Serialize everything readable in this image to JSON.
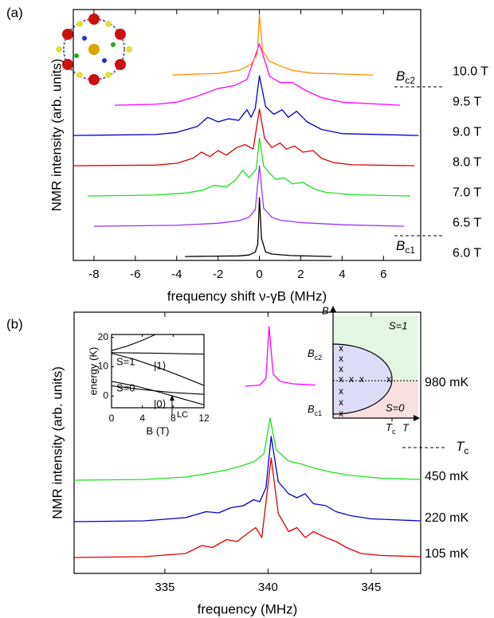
{
  "chart_data": [
    {
      "type": "line",
      "panel_label": "(a)",
      "x_label": "frequency shift ν-γB  (MHz)",
      "y_label": "NMR intensity (arb. units)",
      "xlim": [
        -9,
        7.8
      ],
      "ylim": [
        -0.13,
        8.16
      ],
      "xticks": [
        -8,
        -6,
        -4,
        -2,
        0,
        2,
        4,
        6
      ],
      "series": [
        {
          "name": "6.0 T",
          "color": "#000000",
          "x": [
            -3.6,
            -1,
            -0.5,
            -0.2,
            -0.08,
            0,
            0.1,
            0.3,
            0.6,
            1.5,
            3.5
          ],
          "values": [
            0,
            0.02,
            0.05,
            0.15,
            0.4,
            1.95,
            0.6,
            0.15,
            0.08,
            0.03,
            0
          ]
        },
        {
          "name": "6.5 T",
          "color": "#9933ff",
          "x": [
            -8,
            -4,
            -2,
            -1,
            -0.5,
            -0.2,
            0,
            0.2,
            0.6,
            1,
            2,
            4,
            7
          ],
          "values": [
            1,
            1.03,
            1.1,
            1.18,
            1.3,
            1.55,
            3.0,
            1.6,
            1.3,
            1.2,
            1.12,
            1.05,
            1
          ]
        },
        {
          "name": "7.0 T",
          "color": "#22dd22",
          "x": [
            -8.3,
            -5,
            -3.5,
            -2.7,
            -2.2,
            -1.6,
            -1.2,
            -0.8,
            -0.5,
            -0.15,
            0,
            0.2,
            0.5,
            0.8,
            1.2,
            1.6,
            2.1,
            2.6,
            3.2,
            4.5,
            7.3
          ],
          "values": [
            2,
            2.03,
            2.1,
            2.2,
            2.35,
            2.3,
            2.5,
            2.85,
            2.6,
            2.9,
            3.92,
            3.0,
            2.75,
            2.55,
            2.6,
            2.4,
            2.45,
            2.25,
            2.12,
            2.04,
            2
          ]
        },
        {
          "name": "8.0 T",
          "color": "#e00000",
          "x": [
            -9,
            -5,
            -4,
            -3.2,
            -2.8,
            -2.4,
            -2,
            -1.6,
            -1.1,
            -0.7,
            -0.3,
            0,
            0.25,
            0.6,
            1,
            1.3,
            1.7,
            2.1,
            2.6,
            3,
            3.6,
            4.5,
            7.5
          ],
          "values": [
            3,
            3.02,
            3.08,
            3.25,
            3.45,
            3.3,
            3.5,
            3.35,
            3.6,
            3.7,
            3.55,
            4.87,
            3.9,
            3.6,
            3.75,
            3.55,
            3.65,
            3.45,
            3.5,
            3.25,
            3.1,
            3.03,
            3
          ]
        },
        {
          "name": "9.0 T",
          "color": "#0000cc",
          "x": [
            -9,
            -5,
            -4,
            -3,
            -2.5,
            -2,
            -1.5,
            -1,
            -0.6,
            -0.4,
            -0.2,
            0,
            0.3,
            0.7,
            1.1,
            1.4,
            1.8,
            2.3,
            3,
            4,
            7.7
          ],
          "values": [
            4,
            4.03,
            4.1,
            4.3,
            4.6,
            4.45,
            4.55,
            4.5,
            4.85,
            4.6,
            4.9,
            5.97,
            4.95,
            4.7,
            4.85,
            4.6,
            4.8,
            4.45,
            4.2,
            4.06,
            4
          ]
        },
        {
          "name": "9.5 T",
          "color": "#ff00ff",
          "x": [
            -7,
            -5,
            -4,
            -3,
            -2,
            -1.2,
            -0.6,
            0,
            0.5,
            1,
            1.6,
            2.2,
            3,
            4,
            6.8
          ],
          "values": [
            5,
            5.03,
            5.1,
            5.3,
            5.55,
            5.65,
            5.85,
            7.03,
            5.95,
            5.75,
            5.75,
            5.5,
            5.25,
            5.1,
            5
          ]
        },
        {
          "name": "10.0 T",
          "color": "#ff8c00",
          "x": [
            -4.2,
            -2,
            -1,
            -0.4,
            -0.1,
            0,
            0.15,
            0.5,
            1,
            1.6,
            2.5,
            5.5
          ],
          "values": [
            6,
            6.05,
            6.15,
            6.35,
            6.7,
            8.0,
            6.8,
            6.45,
            6.3,
            6.15,
            6.06,
            6
          ]
        }
      ],
      "annotations": [
        {
          "text": "B",
          "sub": "c2"
        },
        {
          "text": "B",
          "sub": "c1"
        }
      ]
    },
    {
      "type": "line",
      "panel_label": "(b)",
      "x_label": "frequency (MHz)",
      "y_label": "NMR intensity (arb. units)",
      "xlim": [
        330.6,
        347.4
      ],
      "ylim": [
        -0.4,
        6.16
      ],
      "xticks": [
        335,
        340,
        345
      ],
      "series": [
        {
          "name": "980 mK",
          "color": "#ff00ff",
          "x": [
            338.9,
            339.6,
            339.9,
            340.05,
            340.25,
            340.6,
            341.2,
            342.3
          ],
          "values": [
            4.3,
            4.33,
            4.5,
            5.8,
            4.6,
            4.42,
            4.36,
            4.33
          ]
        },
        {
          "name": "450 mK",
          "color": "#22dd22",
          "x": [
            330.6,
            334,
            336,
            337,
            338,
            338.7,
            339.3,
            339.8,
            340.1,
            340.4,
            341,
            341.6,
            342.2,
            343,
            344,
            345.5,
            347.4
          ],
          "values": [
            1.94,
            1.96,
            2.02,
            2.1,
            2.2,
            2.3,
            2.4,
            2.6,
            3.5,
            2.7,
            2.42,
            2.35,
            2.25,
            2.15,
            2.06,
            1.99,
            1.96
          ]
        },
        {
          "name": "220 mK",
          "color": "#0000cc",
          "x": [
            330.6,
            334,
            336,
            337,
            337.6,
            338.2,
            338.8,
            339.3,
            339.6,
            339.9,
            340.15,
            340.5,
            341,
            341.4,
            341.8,
            342.2,
            342.8,
            343.3,
            344,
            345,
            347.4
          ],
          "values": [
            0.9,
            0.92,
            1.0,
            1.15,
            1.12,
            1.25,
            1.3,
            1.45,
            1.4,
            1.75,
            3.04,
            1.9,
            1.6,
            1.5,
            1.6,
            1.35,
            1.3,
            1.15,
            1.05,
            0.97,
            0.92
          ]
        },
        {
          "name": "105 mK",
          "color": "#e00000",
          "x": [
            330.6,
            334,
            336,
            336.8,
            337.3,
            338,
            338.5,
            339,
            339.4,
            339.7,
            340.15,
            340.5,
            341,
            341.4,
            341.8,
            342.2,
            342.8,
            343.3,
            343.8,
            344.5,
            345.5,
            347.4
          ],
          "values": [
            0,
            0.02,
            0.1,
            0.3,
            0.25,
            0.45,
            0.4,
            0.6,
            0.75,
            0.5,
            2.5,
            1.1,
            0.65,
            0.75,
            0.5,
            0.65,
            0.5,
            0.4,
            0.25,
            0.1,
            0.05,
            0.02
          ]
        }
      ],
      "annotations": [
        {
          "text": "T",
          "sub": "c"
        }
      ]
    },
    {
      "type": "line",
      "x_label": "B (T)",
      "y_label": "energy (K)",
      "xlim": [
        0,
        12
      ],
      "ylim": [
        -4,
        21
      ],
      "xticks": [
        0,
        4,
        8,
        12
      ],
      "yticks": [
        0,
        10,
        20
      ],
      "series": [
        {
          "color": "#000000",
          "x": [
            0,
            2,
            4,
            5.7
          ],
          "values": [
            15.5,
            17,
            19,
            21
          ]
        },
        {
          "color": "#000000",
          "x": [
            0,
            6,
            12
          ],
          "values": [
            14.8,
            14.6,
            14.3
          ]
        },
        {
          "color": "#000000",
          "x": [
            0,
            3,
            6,
            9,
            12
          ],
          "values": [
            14.6,
            12.5,
            9.8,
            6.8,
            3.6
          ]
        },
        {
          "color": "#000000",
          "x": [
            0,
            3,
            6,
            9,
            12
          ],
          "values": [
            5,
            3.5,
            1.5,
            -0.8,
            -3
          ]
        },
        {
          "color": "#000000",
          "x": [
            0,
            4,
            8,
            12
          ],
          "values": [
            3.5,
            2.2,
            1.2,
            0.6
          ]
        }
      ],
      "annotations": [
        "S=1",
        "|1⟩",
        "S=0",
        "|0⟩",
        "LC"
      ]
    },
    {
      "type": "phase-diagram",
      "x_label": "T",
      "y_label": "B",
      "labels": {
        "upper": "S=1",
        "lower": "S=0",
        "bc2": {
          "text": "B",
          "sub": "c2"
        },
        "bc1": {
          "text": "B",
          "sub": "c1"
        },
        "tc": {
          "text": "T",
          "sub": "c"
        }
      }
    }
  ]
}
